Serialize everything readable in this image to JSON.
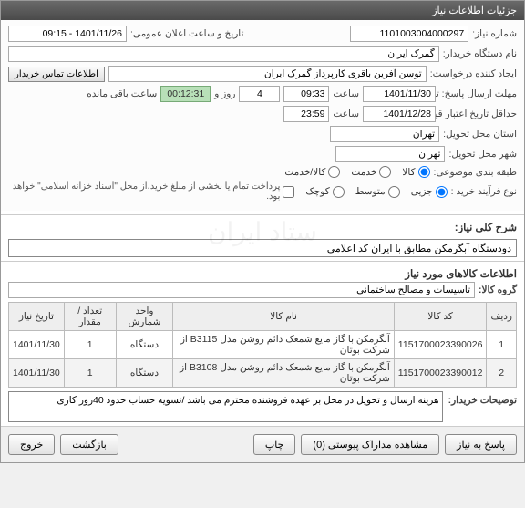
{
  "title": "جزئیات اطلاعات نیاز",
  "labels": {
    "req_number": "شماره نیاز:",
    "org_name": "نام دستگاه خریدار:",
    "creator": "ایجاد کننده درخواست:",
    "public_datetime": "تاریخ و ساعت اعلان عمومی:",
    "deadline": "مهلت ارسال پاسخ: تا تاریخ:",
    "hour": "ساعت",
    "day_and": "روز و",
    "remain": "ساعت باقی مانده",
    "validity": "حداقل تاریخ اعتبار قیمت: تا تاریخ:",
    "delivery_state": "استان محل تحویل:",
    "delivery_city": "شهر محل تحویل:",
    "category": "طبقه بندی موضوعی:",
    "purchase_type": "نوع فرآیند خرید :",
    "summary": "شرح کلی نیاز:",
    "items_info": "اطلاعات کالاهای مورد نیاز",
    "group": "گروه کالا:",
    "buyer_notes": "توضیحات خریدار:",
    "contact_btn": "اطلاعات تماس خریدار",
    "cat_goods": "کالا",
    "cat_service": "خدمت",
    "cat_both": "کالا/خدمت",
    "p_small": "کوچک",
    "p_medium": "متوسط",
    "p_partial": "جزیی",
    "payment_note": "پرداخت تمام یا بخشی از مبلغ خرید،از محل \"اسناد خزانه اسلامی\" خواهد بود."
  },
  "values": {
    "req_number": "1101003004000297",
    "org_name": "گمرک ایران",
    "creator": "توسن آفرین باقری کارپرداز گمرک ایران",
    "public_datetime": "1401/11/26 - 09:15",
    "deadline_date": "1401/11/30",
    "deadline_time": "09:33",
    "days_left": "4",
    "timer": "00:12:31",
    "validity_date": "1401/12/28",
    "validity_time": "23:59",
    "state": "تهران",
    "city": "تهران",
    "summary": "دودستگاه آبگرمکن مطابق با ایران کد اعلامی",
    "group": "تاسیسات و مصالح ساختمانی",
    "notes": "هزینه ارسال و تحویل در محل بر عهده فروشنده محترم می باشد /تسویه حساب حدود 40روز کاری"
  },
  "category_selected": "goods",
  "purchase_selected": "partial",
  "table": {
    "headers": [
      "ردیف",
      "کد کالا",
      "نام کالا",
      "واحد شمارش",
      "تعداد / مقدار",
      "تاریخ نیاز"
    ],
    "rows": [
      [
        "1",
        "1151700023390026",
        "آبگرمکن با گاز مایع شمعک دائم روشن مدل B3115 از شرکت بوتان",
        "دستگاه",
        "1",
        "1401/11/30"
      ],
      [
        "2",
        "1151700023390012",
        "آبگرمکن با گاز مایع شمعک دائم روشن مدل B3108 از شرکت بوتان",
        "دستگاه",
        "1",
        "1401/11/30"
      ]
    ]
  },
  "footer": {
    "reply": "پاسخ به نیاز",
    "attachments": "مشاهده مداراک پیوستی (0)",
    "print": "چاپ",
    "back": "بازگشت",
    "exit": "خروج"
  },
  "colors": {
    "titlebar_bg": "#555555",
    "timer_bg": "#b8e0b8",
    "border": "#aaaaaa",
    "header_bg": "#eeeeee"
  }
}
